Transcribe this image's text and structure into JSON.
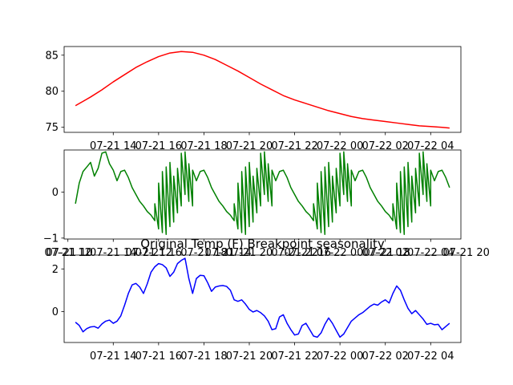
{
  "chart_data": [
    {
      "type": "line",
      "title": "",
      "xlabel": "",
      "ylabel": "",
      "grid": false,
      "x_axis": "time",
      "xlim": [
        "2023-07-21 11:50",
        "2023-07-22 05:20"
      ],
      "ylim": [
        74.3,
        86.2
      ],
      "x_ticks": [
        {
          "value": "2023-07-21 14:00",
          "label": "07-21 14"
        },
        {
          "value": "2023-07-21 16:00",
          "label": "07-21 16"
        },
        {
          "value": "2023-07-21 18:00",
          "label": "07-21 18"
        },
        {
          "value": "2023-07-21 20:00",
          "label": "07-21 20"
        },
        {
          "value": "2023-07-21 22:00",
          "label": "07-21 22"
        },
        {
          "value": "2023-07-22 00:00",
          "label": "07-22 00"
        },
        {
          "value": "2023-07-22 02:00",
          "label": "07-22 02"
        },
        {
          "value": "2023-07-22 04:00",
          "label": "07-22 04"
        }
      ],
      "y_ticks": [
        {
          "value": 75,
          "label": "75"
        },
        {
          "value": 80,
          "label": "80"
        },
        {
          "value": 85,
          "label": "85"
        }
      ],
      "series": [
        {
          "color": "#ff0000",
          "points": [
            [
              "2023-07-21 12:20",
              78.0
            ],
            [
              "2023-07-21 12:40",
              78.6
            ],
            [
              "2023-07-21 13:00",
              79.2
            ],
            [
              "2023-07-21 13:30",
              80.2
            ],
            [
              "2023-07-21 14:00",
              81.3
            ],
            [
              "2023-07-21 14:30",
              82.3
            ],
            [
              "2023-07-21 15:00",
              83.3
            ],
            [
              "2023-07-21 15:30",
              84.1
            ],
            [
              "2023-07-21 16:00",
              84.8
            ],
            [
              "2023-07-21 16:30",
              85.3
            ],
            [
              "2023-07-21 17:00",
              85.5
            ],
            [
              "2023-07-21 17:30",
              85.4
            ],
            [
              "2023-07-21 18:00",
              85.0
            ],
            [
              "2023-07-21 18:30",
              84.4
            ],
            [
              "2023-07-21 19:00",
              83.6
            ],
            [
              "2023-07-21 19:30",
              82.8
            ],
            [
              "2023-07-21 20:00",
              81.9
            ],
            [
              "2023-07-21 20:30",
              81.0
            ],
            [
              "2023-07-21 21:00",
              80.2
            ],
            [
              "2023-07-21 21:30",
              79.4
            ],
            [
              "2023-07-21 22:00",
              78.8
            ],
            [
              "2023-07-21 22:30",
              78.3
            ],
            [
              "2023-07-21 23:00",
              77.8
            ],
            [
              "2023-07-21 23:30",
              77.3
            ],
            [
              "2023-07-22 00:00",
              76.9
            ],
            [
              "2023-07-22 00:30",
              76.5
            ],
            [
              "2023-07-22 01:00",
              76.2
            ],
            [
              "2023-07-22 01:30",
              76.0
            ],
            [
              "2023-07-22 02:00",
              75.8
            ],
            [
              "2023-07-22 02:30",
              75.6
            ],
            [
              "2023-07-22 03:00",
              75.4
            ],
            [
              "2023-07-22 03:30",
              75.2
            ],
            [
              "2023-07-22 04:00",
              75.1
            ],
            [
              "2023-07-22 04:30",
              75.0
            ],
            [
              "2023-07-22 04:50",
              74.9
            ]
          ]
        }
      ]
    },
    {
      "type": "line",
      "title": "",
      "xlabel": "",
      "ylabel": "",
      "grid": false,
      "x_axis": "time",
      "xlim": [
        "2023-07-21 11:50",
        "2023-07-22 05:20"
      ],
      "ylim": [
        -1.02,
        0.92
      ],
      "x_ticks": [
        {
          "value": "2023-07-21 12:00",
          "label": "07-21 12"
        },
        {
          "value": "2023-07-21 14:00",
          "label": "07-21 14"
        },
        {
          "value": "2023-07-21 16:00",
          "label": "07-21 16"
        },
        {
          "value": "2023-07-21 18:00",
          "label": "07-21 18"
        },
        {
          "value": "2023-07-21 20:00",
          "label": "07-21 20"
        },
        {
          "value": "2023-07-21 22:00",
          "label": "07-21 22"
        },
        {
          "value": "2023-07-22 00:00",
          "label": "07-22 00"
        },
        {
          "value": "2023-07-22 02:00",
          "label": "07-22 02"
        },
        {
          "value": "2023-07-22 04:00",
          "label": "07-22 04"
        }
      ],
      "secondary_x_ticks": [
        {
          "value": "2023-07-21 12:00",
          "label": "07-21 10"
        },
        {
          "value": "2023-07-21 15:30",
          "label": "07-21 12"
        },
        {
          "value": "2023-07-21 19:00",
          "label": "07-21 14"
        },
        {
          "value": "2023-07-21 22:30",
          "label": "07-21 16"
        },
        {
          "value": "2023-07-22 02:00",
          "label": "07-21 18"
        },
        {
          "value": "2023-07-22 05:30",
          "label": "07-21 20"
        }
      ],
      "y_ticks": [
        {
          "value": -1,
          "label": "−1"
        },
        {
          "value": 0,
          "label": "0"
        }
      ],
      "series": [
        {
          "color": "#008000",
          "period_hours": 3.5,
          "points": [
            [
              "2023-07-21 12:20",
              -0.25
            ],
            [
              "2023-07-21 12:30",
              0.2
            ],
            [
              "2023-07-21 12:40",
              0.45
            ],
            [
              "2023-07-21 12:50",
              0.55
            ],
            [
              "2023-07-21 13:00",
              0.65
            ],
            [
              "2023-07-21 13:10",
              0.35
            ],
            [
              "2023-07-21 13:20",
              0.52
            ],
            [
              "2023-07-21 13:30",
              0.85
            ],
            [
              "2023-07-21 13:40",
              0.88
            ],
            [
              "2023-07-21 13:50",
              0.62
            ],
            [
              "2023-07-21 14:00",
              0.48
            ],
            [
              "2023-07-21 14:10",
              0.25
            ],
            [
              "2023-07-21 14:20",
              0.45
            ],
            [
              "2023-07-21 14:30",
              0.48
            ],
            [
              "2023-07-21 14:40",
              0.32
            ],
            [
              "2023-07-21 14:50",
              0.1
            ],
            [
              "2023-07-21 15:00",
              -0.05
            ],
            [
              "2023-07-21 15:10",
              -0.2
            ],
            [
              "2023-07-21 15:20",
              -0.3
            ],
            [
              "2023-07-21 15:30",
              -0.42
            ],
            [
              "2023-07-21 15:40",
              -0.5
            ],
            [
              "2023-07-21 15:50",
              -0.62
            ],
            [
              "2023-07-21 16:00",
              -0.8
            ],
            [
              "2023-07-21 16:10",
              -0.88
            ],
            [
              "2023-07-21 16:20",
              -0.92
            ],
            [
              "2023-07-21 16:30",
              -0.75
            ],
            [
              "2023-07-21 16:40",
              -0.65
            ],
            [
              "2023-07-21 16:50",
              -0.45
            ],
            [
              "2023-07-21 17:00",
              -0.3
            ],
            [
              "2023-07-21 17:10",
              -0.05
            ],
            [
              "2023-07-21 17:20",
              -0.2
            ],
            [
              "2023-07-21 17:30",
              -0.3
            ]
          ]
        }
      ]
    },
    {
      "type": "line",
      "title": "Original Temp (F) Breakpoint seasonality",
      "xlabel": "",
      "ylabel": "",
      "grid": false,
      "x_axis": "time",
      "xlim": [
        "2023-07-21 11:50",
        "2023-07-22 05:20"
      ],
      "ylim": [
        -1.45,
        2.65
      ],
      "x_ticks": [
        {
          "value": "2023-07-21 14:00",
          "label": "07-21 14"
        },
        {
          "value": "2023-07-21 16:00",
          "label": "07-21 16"
        },
        {
          "value": "2023-07-21 18:00",
          "label": "07-21 18"
        },
        {
          "value": "2023-07-21 20:00",
          "label": "07-21 20"
        },
        {
          "value": "2023-07-21 22:00",
          "label": "07-21 22"
        },
        {
          "value": "2023-07-22 00:00",
          "label": "07-22 00"
        },
        {
          "value": "2023-07-22 02:00",
          "label": "07-22 02"
        },
        {
          "value": "2023-07-22 04:00",
          "label": "07-22 04"
        }
      ],
      "y_ticks": [
        {
          "value": 0,
          "label": "0"
        },
        {
          "value": 2,
          "label": "2"
        }
      ],
      "series": [
        {
          "color": "#0000ff",
          "points": [
            [
              "2023-07-21 12:20",
              -0.5
            ],
            [
              "2023-07-21 12:30",
              -0.65
            ],
            [
              "2023-07-21 12:40",
              -0.95
            ],
            [
              "2023-07-21 12:50",
              -0.8
            ],
            [
              "2023-07-21 13:00",
              -0.72
            ],
            [
              "2023-07-21 13:10",
              -0.7
            ],
            [
              "2023-07-21 13:20",
              -0.78
            ],
            [
              "2023-07-21 13:30",
              -0.58
            ],
            [
              "2023-07-21 13:40",
              -0.45
            ],
            [
              "2023-07-21 13:50",
              -0.4
            ],
            [
              "2023-07-21 14:00",
              -0.55
            ],
            [
              "2023-07-21 14:10",
              -0.45
            ],
            [
              "2023-07-21 14:20",
              -0.2
            ],
            [
              "2023-07-21 14:30",
              0.3
            ],
            [
              "2023-07-21 14:40",
              0.85
            ],
            [
              "2023-07-21 14:50",
              1.25
            ],
            [
              "2023-07-21 15:00",
              1.32
            ],
            [
              "2023-07-21 15:10",
              1.15
            ],
            [
              "2023-07-21 15:20",
              0.85
            ],
            [
              "2023-07-21 15:30",
              1.3
            ],
            [
              "2023-07-21 15:40",
              1.85
            ],
            [
              "2023-07-21 15:50",
              2.1
            ],
            [
              "2023-07-21 16:00",
              2.25
            ],
            [
              "2023-07-21 16:10",
              2.2
            ],
            [
              "2023-07-21 16:20",
              2.05
            ],
            [
              "2023-07-21 16:30",
              1.65
            ],
            [
              "2023-07-21 16:40",
              1.85
            ],
            [
              "2023-07-21 16:50",
              2.25
            ],
            [
              "2023-07-21 17:00",
              2.4
            ],
            [
              "2023-07-21 17:10",
              2.5
            ],
            [
              "2023-07-21 17:20",
              1.55
            ],
            [
              "2023-07-21 17:30",
              0.85
            ],
            [
              "2023-07-21 17:40",
              1.55
            ],
            [
              "2023-07-21 17:50",
              1.7
            ],
            [
              "2023-07-21 18:00",
              1.68
            ],
            [
              "2023-07-21 18:10",
              1.35
            ],
            [
              "2023-07-21 18:20",
              0.95
            ],
            [
              "2023-07-21 18:30",
              1.15
            ],
            [
              "2023-07-21 18:40",
              1.2
            ],
            [
              "2023-07-21 18:50",
              1.22
            ],
            [
              "2023-07-21 19:00",
              1.18
            ],
            [
              "2023-07-21 19:10",
              1.0
            ],
            [
              "2023-07-21 19:20",
              0.55
            ],
            [
              "2023-07-21 19:30",
              0.48
            ],
            [
              "2023-07-21 19:40",
              0.55
            ],
            [
              "2023-07-21 19:50",
              0.35
            ],
            [
              "2023-07-21 20:00",
              0.1
            ],
            [
              "2023-07-21 20:10",
              -0.02
            ],
            [
              "2023-07-21 20:20",
              0.05
            ],
            [
              "2023-07-21 20:30",
              -0.05
            ],
            [
              "2023-07-21 20:40",
              -0.2
            ],
            [
              "2023-07-21 20:50",
              -0.45
            ],
            [
              "2023-07-21 21:00",
              -0.85
            ],
            [
              "2023-07-21 21:10",
              -0.8
            ],
            [
              "2023-07-21 21:20",
              -0.25
            ],
            [
              "2023-07-21 21:30",
              -0.15
            ],
            [
              "2023-07-21 21:40",
              -0.55
            ],
            [
              "2023-07-21 21:50",
              -0.85
            ],
            [
              "2023-07-21 22:00",
              -1.1
            ],
            [
              "2023-07-21 22:10",
              -1.05
            ],
            [
              "2023-07-21 22:20",
              -0.65
            ],
            [
              "2023-07-21 22:30",
              -0.55
            ],
            [
              "2023-07-21 22:40",
              -0.85
            ],
            [
              "2023-07-21 22:50",
              -1.15
            ],
            [
              "2023-07-21 23:00",
              -1.2
            ],
            [
              "2023-07-21 23:10",
              -1.0
            ],
            [
              "2023-07-21 23:20",
              -0.6
            ],
            [
              "2023-07-21 23:30",
              -0.3
            ],
            [
              "2023-07-21 23:40",
              -0.55
            ],
            [
              "2023-07-21 23:50",
              -0.88
            ],
            [
              "2023-07-22 00:00",
              -1.2
            ],
            [
              "2023-07-22 00:10",
              -1.05
            ],
            [
              "2023-07-22 00:20",
              -0.75
            ],
            [
              "2023-07-22 00:30",
              -0.45
            ],
            [
              "2023-07-22 00:40",
              -0.3
            ],
            [
              "2023-07-22 00:50",
              -0.15
            ],
            [
              "2023-07-22 01:00",
              -0.05
            ],
            [
              "2023-07-22 01:10",
              0.1
            ],
            [
              "2023-07-22 01:20",
              0.25
            ],
            [
              "2023-07-22 01:30",
              0.35
            ],
            [
              "2023-07-22 01:40",
              0.3
            ],
            [
              "2023-07-22 01:50",
              0.45
            ],
            [
              "2023-07-22 02:00",
              0.55
            ],
            [
              "2023-07-22 02:10",
              0.4
            ],
            [
              "2023-07-22 02:20",
              0.85
            ],
            [
              "2023-07-22 02:30",
              1.2
            ],
            [
              "2023-07-22 02:40",
              1.0
            ],
            [
              "2023-07-22 02:50",
              0.55
            ],
            [
              "2023-07-22 03:00",
              0.15
            ],
            [
              "2023-07-22 03:10",
              -0.1
            ],
            [
              "2023-07-22 03:20",
              0.05
            ],
            [
              "2023-07-22 03:30",
              -0.15
            ],
            [
              "2023-07-22 03:40",
              -0.35
            ],
            [
              "2023-07-22 03:50",
              -0.6
            ],
            [
              "2023-07-22 04:00",
              -0.55
            ],
            [
              "2023-07-22 04:10",
              -0.62
            ],
            [
              "2023-07-22 04:20",
              -0.6
            ],
            [
              "2023-07-22 04:30",
              -0.85
            ],
            [
              "2023-07-22 04:40",
              -0.7
            ],
            [
              "2023-07-22 04:50",
              -0.55
            ]
          ]
        }
      ]
    }
  ]
}
